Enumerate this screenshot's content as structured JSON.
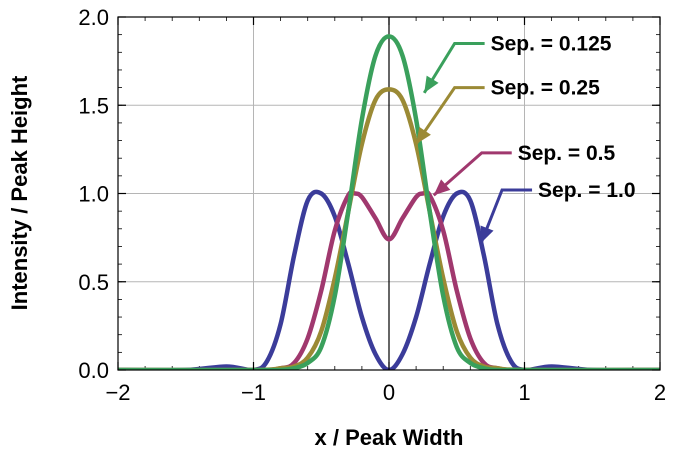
{
  "chart_data": {
    "type": "line",
    "title": "",
    "xlabel": "x / Peak Width",
    "ylabel": "Intensity / Peak Height",
    "xlim": [
      -2,
      2
    ],
    "ylim": [
      0,
      2.0
    ],
    "grid": true,
    "x_ticks": [
      -2,
      -1,
      0,
      1,
      2
    ],
    "x_tick_labels": [
      "−2",
      "−1",
      "0",
      "1",
      "2"
    ],
    "y_ticks": [
      0,
      0.5,
      1.0,
      1.5,
      2.0
    ],
    "y_tick_labels": [
      "0.0",
      "0.5",
      "1.0",
      "1.5",
      "2.0"
    ],
    "legend": "inline annotations with arrows",
    "series": [
      {
        "name": "Sep. = 1.0",
        "separation": 1.0,
        "color": "#3b3c9a",
        "x": [
          -2.0,
          -1.5,
          -1.2,
          -1.0,
          -0.9,
          -0.8,
          -0.7,
          -0.6,
          -0.5,
          -0.4,
          -0.3,
          -0.2,
          -0.1,
          0.0,
          0.1,
          0.2,
          0.3,
          0.4,
          0.5,
          0.6,
          0.7,
          0.8,
          0.9,
          1.0,
          1.2,
          1.5,
          2.0
        ],
        "values": [
          0.0,
          0.0,
          0.02,
          0.0,
          0.05,
          0.26,
          0.65,
          0.96,
          1.0,
          0.87,
          0.6,
          0.3,
          0.09,
          0.0,
          0.09,
          0.3,
          0.6,
          0.87,
          1.0,
          0.96,
          0.65,
          0.26,
          0.05,
          0.0,
          0.02,
          0.0,
          0.0
        ]
      },
      {
        "name": "Sep. = 0.5",
        "separation": 0.5,
        "color": "#a0386e",
        "x": [
          -2.0,
          -1.0,
          -0.8,
          -0.7,
          -0.6,
          -0.5,
          -0.4,
          -0.3,
          -0.25,
          -0.2,
          -0.1,
          0.0,
          0.1,
          0.2,
          0.25,
          0.3,
          0.4,
          0.5,
          0.6,
          0.7,
          0.8,
          1.0,
          2.0
        ],
        "values": [
          0.0,
          0.0,
          0.01,
          0.04,
          0.18,
          0.45,
          0.79,
          0.99,
          1.0,
          0.98,
          0.86,
          0.74,
          0.86,
          0.98,
          1.0,
          0.99,
          0.79,
          0.45,
          0.18,
          0.04,
          0.01,
          0.0,
          0.0
        ]
      },
      {
        "name": "Sep. = 0.25",
        "separation": 0.25,
        "color": "#9b8a35",
        "x": [
          -2.0,
          -1.0,
          -0.8,
          -0.7,
          -0.6,
          -0.5,
          -0.4,
          -0.3,
          -0.2,
          -0.1,
          0.0,
          0.1,
          0.2,
          0.3,
          0.4,
          0.5,
          0.6,
          0.7,
          0.8,
          1.0,
          2.0
        ],
        "values": [
          0.0,
          0.0,
          0.01,
          0.02,
          0.07,
          0.22,
          0.52,
          0.9,
          1.28,
          1.53,
          1.59,
          1.53,
          1.28,
          0.9,
          0.52,
          0.22,
          0.07,
          0.02,
          0.01,
          0.0,
          0.0
        ]
      },
      {
        "name": "Sep. = 0.125",
        "separation": 0.125,
        "color": "#3aa05c",
        "x": [
          -2.0,
          -1.0,
          -0.8,
          -0.7,
          -0.6,
          -0.5,
          -0.4,
          -0.3,
          -0.2,
          -0.1,
          0.0,
          0.1,
          0.2,
          0.3,
          0.4,
          0.5,
          0.6,
          0.7,
          0.8,
          1.0,
          2.0
        ],
        "values": [
          0.0,
          0.0,
          0.0,
          0.01,
          0.04,
          0.13,
          0.42,
          0.9,
          1.42,
          1.78,
          1.89,
          1.78,
          1.42,
          0.9,
          0.42,
          0.13,
          0.04,
          0.01,
          0.0,
          0.0,
          0.0
        ]
      }
    ]
  },
  "annotations": [
    {
      "label": "Sep. = 0.125",
      "series_index": 3,
      "point": [
        0.26,
        1.57
      ],
      "text_anchor": [
        0.75,
        1.85
      ]
    },
    {
      "label": "Sep. = 0.25",
      "series_index": 2,
      "point": [
        0.2,
        1.28
      ],
      "text_anchor": [
        0.75,
        1.6
      ]
    },
    {
      "label": "Sep. = 0.5",
      "series_index": 1,
      "point": [
        0.33,
        0.99
      ],
      "text_anchor": [
        0.95,
        1.23
      ]
    },
    {
      "label": "Sep. = 1.0",
      "series_index": 0,
      "point": [
        0.68,
        0.72
      ],
      "text_anchor": [
        1.1,
        1.02
      ]
    }
  ]
}
